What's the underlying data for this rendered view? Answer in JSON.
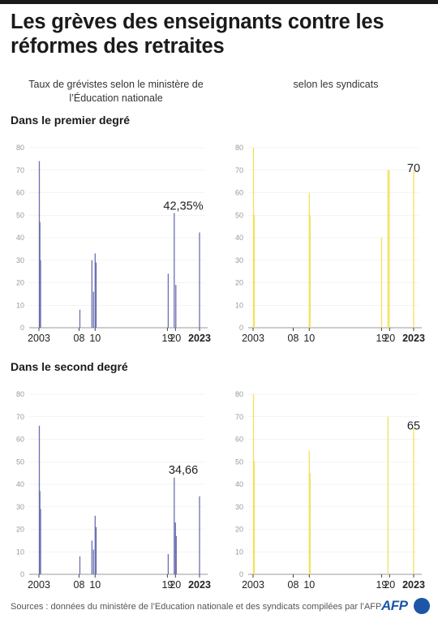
{
  "title": "Les grèves des enseignants contre les réformes des retraites",
  "columns": {
    "left": "Taux de grévistes selon le ministère de l’Éducation nationale",
    "right": "selon les syndicats"
  },
  "sections": {
    "primary": "Dans le premier degré",
    "secondary": "Dans le second degré"
  },
  "source": "Sources : données du ministère de l’Education nationale et des syndicats compilées par l’AFP",
  "logo": "AFP",
  "colors": {
    "ministry": "#6a6fb0",
    "unions": "#f2e15a",
    "axis": "#888888",
    "grid": "#dddddd"
  },
  "chart_data": [
    {
      "type": "bar",
      "name": "premier-degre-ministere",
      "ylim": [
        0,
        80
      ],
      "yticks": [
        0,
        10,
        20,
        30,
        40,
        50,
        60,
        70,
        80
      ],
      "xlim": [
        2003,
        2023
      ],
      "xticks": [
        {
          "x": 2003,
          "label": "2003"
        },
        {
          "x": 2008,
          "label": "08"
        },
        {
          "x": 2010,
          "label": "10"
        },
        {
          "x": 2019,
          "label": "19"
        },
        {
          "x": 2020,
          "label": "20"
        },
        {
          "x": 2023,
          "label": "2023",
          "bold": true
        }
      ],
      "points": [
        {
          "x": 2003.05,
          "y": 74
        },
        {
          "x": 2003.12,
          "y": 47
        },
        {
          "x": 2003.2,
          "y": 30
        },
        {
          "x": 2008.1,
          "y": 8
        },
        {
          "x": 2009.6,
          "y": 30
        },
        {
          "x": 2009.8,
          "y": 16
        },
        {
          "x": 2010.0,
          "y": 33
        },
        {
          "x": 2010.12,
          "y": 29
        },
        {
          "x": 2019.1,
          "y": 24
        },
        {
          "x": 2019.85,
          "y": 51
        },
        {
          "x": 2020.05,
          "y": 19
        },
        {
          "x": 2023.0,
          "y": 42.35
        }
      ],
      "annotation": {
        "x": 2023.0,
        "y": 42.35,
        "label": "42,35%"
      }
    },
    {
      "type": "bar",
      "name": "premier-degre-syndicats",
      "ylim": [
        0,
        80
      ],
      "yticks": [
        0,
        10,
        20,
        30,
        40,
        50,
        60,
        70,
        80
      ],
      "xlim": [
        2003,
        2023
      ],
      "xticks": [
        {
          "x": 2003,
          "label": "2003"
        },
        {
          "x": 2008,
          "label": "08"
        },
        {
          "x": 2010,
          "label": "10"
        },
        {
          "x": 2019,
          "label": "19"
        },
        {
          "x": 2020,
          "label": "20"
        },
        {
          "x": 2023,
          "label": "2023",
          "bold": true
        }
      ],
      "points": [
        {
          "x": 2003.05,
          "y": 80
        },
        {
          "x": 2003.15,
          "y": 50
        },
        {
          "x": 2010.0,
          "y": 60
        },
        {
          "x": 2010.1,
          "y": 50
        },
        {
          "x": 2019.0,
          "y": 40
        },
        {
          "x": 2019.8,
          "y": 70
        },
        {
          "x": 2019.95,
          "y": 70
        },
        {
          "x": 2023.0,
          "y": 70
        }
      ],
      "annotation": {
        "x": 2023.0,
        "y": 70,
        "label": "70"
      }
    },
    {
      "type": "bar",
      "name": "second-degre-ministere",
      "ylim": [
        0,
        80
      ],
      "yticks": [
        0,
        10,
        20,
        30,
        40,
        50,
        60,
        70,
        80
      ],
      "xlim": [
        2003,
        2023
      ],
      "xticks": [
        {
          "x": 2003,
          "label": "2003"
        },
        {
          "x": 2008,
          "label": "08"
        },
        {
          "x": 2010,
          "label": "10"
        },
        {
          "x": 2019,
          "label": "19"
        },
        {
          "x": 2020,
          "label": "20"
        },
        {
          "x": 2023,
          "label": "2023",
          "bold": true
        }
      ],
      "points": [
        {
          "x": 2003.05,
          "y": 66
        },
        {
          "x": 2003.12,
          "y": 37
        },
        {
          "x": 2003.2,
          "y": 29
        },
        {
          "x": 2008.1,
          "y": 8
        },
        {
          "x": 2009.6,
          "y": 15
        },
        {
          "x": 2009.8,
          "y": 11
        },
        {
          "x": 2010.0,
          "y": 26
        },
        {
          "x": 2010.12,
          "y": 21
        },
        {
          "x": 2019.1,
          "y": 9
        },
        {
          "x": 2019.85,
          "y": 43
        },
        {
          "x": 2020.0,
          "y": 23
        },
        {
          "x": 2020.1,
          "y": 17
        },
        {
          "x": 2023.0,
          "y": 34.66
        }
      ],
      "annotation": {
        "x": 2023.0,
        "y": 34.66,
        "label": "34,66"
      }
    },
    {
      "type": "bar",
      "name": "second-degre-syndicats",
      "ylim": [
        0,
        80
      ],
      "yticks": [
        0,
        10,
        20,
        30,
        40,
        50,
        60,
        70,
        80
      ],
      "xlim": [
        2003,
        2023
      ],
      "xticks": [
        {
          "x": 2003,
          "label": "2003"
        },
        {
          "x": 2008,
          "label": "08"
        },
        {
          "x": 2010,
          "label": "10"
        },
        {
          "x": 2019,
          "label": "19"
        },
        {
          "x": 2020,
          "label": "20"
        },
        {
          "x": 2023,
          "label": "2023",
          "bold": true
        }
      ],
      "points": [
        {
          "x": 2003.05,
          "y": 80
        },
        {
          "x": 2003.15,
          "y": 50
        },
        {
          "x": 2010.0,
          "y": 55
        },
        {
          "x": 2010.1,
          "y": 45
        },
        {
          "x": 2019.8,
          "y": 70
        },
        {
          "x": 2023.0,
          "y": 65
        }
      ],
      "annotation": {
        "x": 2023.0,
        "y": 65,
        "label": "65"
      }
    }
  ]
}
